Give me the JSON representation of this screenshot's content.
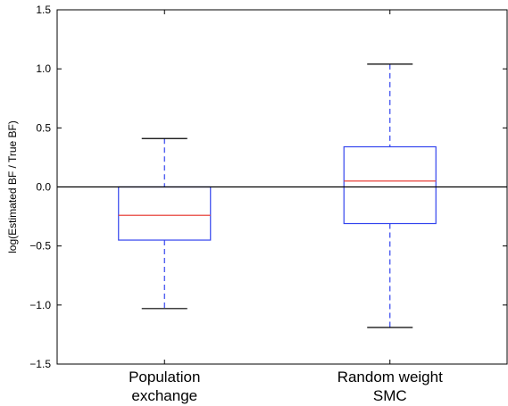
{
  "chart_data": {
    "type": "box",
    "ylabel": "log(Estimated BF / True BF)",
    "ylim": [
      -1.5,
      1.5
    ],
    "yticks": [
      -1.5,
      -1.0,
      -0.5,
      0.0,
      0.5,
      1.0,
      1.5
    ],
    "ytick_labels": [
      "−1.5",
      "−1.0",
      "−0.5",
      "0.0",
      "0.5",
      "1.0",
      "1.5"
    ],
    "reference_line_y": 0.0,
    "grid": false,
    "colors": {
      "box": "#3344ee",
      "median": "#e8473f",
      "whisker": "#3344ee",
      "cap": "#000000",
      "reference": "#000000"
    },
    "boxes": [
      {
        "label_lines": [
          "Population",
          "exchange"
        ],
        "whisker_low": -1.03,
        "q1": -0.45,
        "median": -0.24,
        "q3": 0.0,
        "whisker_high": 0.41
      },
      {
        "label_lines": [
          "Random weight",
          "SMC"
        ],
        "whisker_low": -1.19,
        "q1": -0.31,
        "median": 0.05,
        "q3": 0.34,
        "whisker_high": 1.04
      }
    ]
  }
}
